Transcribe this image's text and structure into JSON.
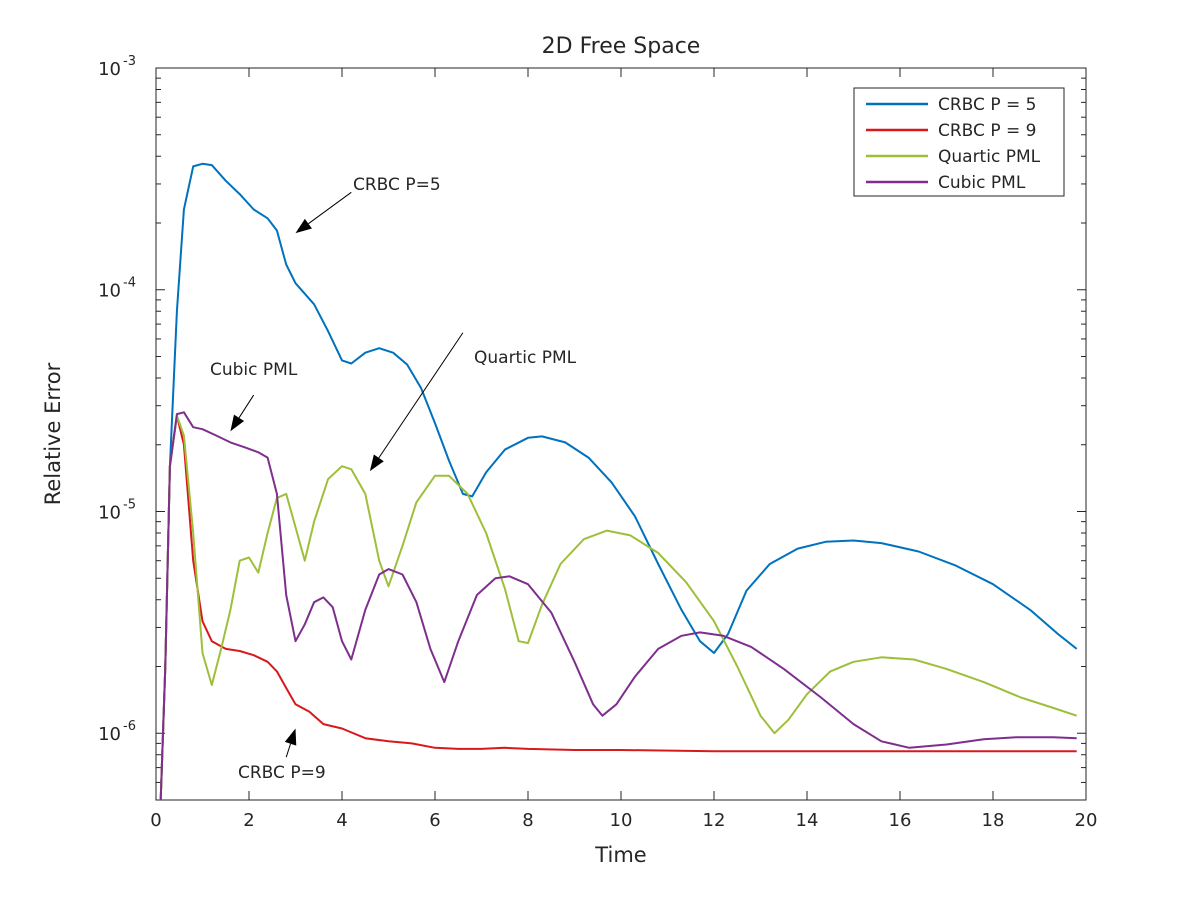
{
  "chart_data": {
    "type": "line",
    "title": "2D Free Space",
    "xlabel": "Time",
    "ylabel": "Relative Error",
    "xlim": [
      0,
      20
    ],
    "ylim": [
      5e-07,
      0.001
    ],
    "yscale": "log",
    "grid": false,
    "legend_position": "top-right",
    "x_ticks": [
      0,
      2,
      4,
      6,
      8,
      10,
      12,
      14,
      16,
      18,
      20
    ],
    "y_ticks": [
      {
        "value": 1e-06,
        "base": "10",
        "exp": "-6"
      },
      {
        "value": 1e-05,
        "base": "10",
        "exp": "-5"
      },
      {
        "value": 0.0001,
        "base": "10",
        "exp": "-4"
      },
      {
        "value": 0.001,
        "base": "10",
        "exp": "-3"
      }
    ],
    "series": [
      {
        "name": "CRBC P = 5",
        "color": "#0072BD",
        "points": [
          [
            0.1,
            5e-07
          ],
          [
            0.2,
            2e-06
          ],
          [
            0.3,
            1.6e-05
          ],
          [
            0.45,
            8e-05
          ],
          [
            0.6,
            0.00023
          ],
          [
            0.8,
            0.00036
          ],
          [
            1.0,
            0.00037
          ],
          [
            1.2,
            0.000365
          ],
          [
            1.5,
            0.00031
          ],
          [
            1.8,
            0.00027
          ],
          [
            2.1,
            0.00023
          ],
          [
            2.4,
            0.00021
          ],
          [
            2.6,
            0.000185
          ],
          [
            2.8,
            0.00013
          ],
          [
            3.0,
            0.000107
          ],
          [
            3.4,
            8.6e-05
          ],
          [
            3.7,
            6.5e-05
          ],
          [
            4.0,
            4.8e-05
          ],
          [
            4.2,
            4.65e-05
          ],
          [
            4.5,
            5.2e-05
          ],
          [
            4.8,
            5.45e-05
          ],
          [
            5.1,
            5.2e-05
          ],
          [
            5.4,
            4.6e-05
          ],
          [
            5.7,
            3.6e-05
          ],
          [
            6.0,
            2.5e-05
          ],
          [
            6.3,
            1.7e-05
          ],
          [
            6.6,
            1.2e-05
          ],
          [
            6.8,
            1.17e-05
          ],
          [
            7.1,
            1.5e-05
          ],
          [
            7.5,
            1.9e-05
          ],
          [
            8.0,
            2.15e-05
          ],
          [
            8.3,
            2.18e-05
          ],
          [
            8.8,
            2.05e-05
          ],
          [
            9.3,
            1.75e-05
          ],
          [
            9.8,
            1.35e-05
          ],
          [
            10.3,
            9.5e-06
          ],
          [
            10.8,
            5.8e-06
          ],
          [
            11.3,
            3.6e-06
          ],
          [
            11.7,
            2.6e-06
          ],
          [
            12.0,
            2.3e-06
          ],
          [
            12.3,
            2.8e-06
          ],
          [
            12.7,
            4.4e-06
          ],
          [
            13.2,
            5.8e-06
          ],
          [
            13.8,
            6.8e-06
          ],
          [
            14.4,
            7.3e-06
          ],
          [
            15.0,
            7.4e-06
          ],
          [
            15.6,
            7.2e-06
          ],
          [
            16.4,
            6.6e-06
          ],
          [
            17.2,
            5.7e-06
          ],
          [
            18.0,
            4.7e-06
          ],
          [
            18.8,
            3.6e-06
          ],
          [
            19.4,
            2.8e-06
          ],
          [
            19.8,
            2.4e-06
          ]
        ]
      },
      {
        "name": "CRBC P = 9",
        "color": "#D7191C",
        "points": [
          [
            0.1,
            5e-07
          ],
          [
            0.2,
            2e-06
          ],
          [
            0.3,
            1.6e-05
          ],
          [
            0.45,
            2.7e-05
          ],
          [
            0.6,
            2e-05
          ],
          [
            0.8,
            6e-06
          ],
          [
            1.0,
            3.2e-06
          ],
          [
            1.2,
            2.6e-06
          ],
          [
            1.5,
            2.4e-06
          ],
          [
            1.8,
            2.35e-06
          ],
          [
            2.1,
            2.25e-06
          ],
          [
            2.4,
            2.1e-06
          ],
          [
            2.6,
            1.9e-06
          ],
          [
            2.8,
            1.6e-06
          ],
          [
            3.0,
            1.35e-06
          ],
          [
            3.3,
            1.25e-06
          ],
          [
            3.6,
            1.1e-06
          ],
          [
            4.0,
            1.05e-06
          ],
          [
            4.5,
            9.5e-07
          ],
          [
            5.0,
            9.2e-07
          ],
          [
            5.5,
            9e-07
          ],
          [
            6.0,
            8.6e-07
          ],
          [
            6.5,
            8.5e-07
          ],
          [
            7.0,
            8.5e-07
          ],
          [
            7.5,
            8.6e-07
          ],
          [
            8.0,
            8.5e-07
          ],
          [
            9.0,
            8.4e-07
          ],
          [
            10.0,
            8.4e-07
          ],
          [
            12.0,
            8.3e-07
          ],
          [
            14.0,
            8.3e-07
          ],
          [
            16.0,
            8.3e-07
          ],
          [
            18.0,
            8.3e-07
          ],
          [
            19.8,
            8.3e-07
          ]
        ]
      },
      {
        "name": "Quartic PML",
        "color": "#9DBF3A",
        "points": [
          [
            0.1,
            5e-07
          ],
          [
            0.2,
            2e-06
          ],
          [
            0.3,
            1.6e-05
          ],
          [
            0.45,
            2.7e-05
          ],
          [
            0.6,
            2.2e-05
          ],
          [
            0.8,
            8e-06
          ],
          [
            1.0,
            2.3e-06
          ],
          [
            1.2,
            1.65e-06
          ],
          [
            1.4,
            2.4e-06
          ],
          [
            1.6,
            3.6e-06
          ],
          [
            1.8,
            6e-06
          ],
          [
            2.0,
            6.2e-06
          ],
          [
            2.2,
            5.3e-06
          ],
          [
            2.4,
            8e-06
          ],
          [
            2.6,
            1.15e-05
          ],
          [
            2.8,
            1.2e-05
          ],
          [
            3.0,
            8.5e-06
          ],
          [
            3.2,
            6e-06
          ],
          [
            3.4,
            9e-06
          ],
          [
            3.7,
            1.4e-05
          ],
          [
            4.0,
            1.6e-05
          ],
          [
            4.2,
            1.55e-05
          ],
          [
            4.5,
            1.2e-05
          ],
          [
            4.8,
            6e-06
          ],
          [
            5.0,
            4.6e-06
          ],
          [
            5.3,
            7e-06
          ],
          [
            5.6,
            1.1e-05
          ],
          [
            6.0,
            1.45e-05
          ],
          [
            6.3,
            1.45e-05
          ],
          [
            6.7,
            1.2e-05
          ],
          [
            7.1,
            8e-06
          ],
          [
            7.5,
            4.5e-06
          ],
          [
            7.8,
            2.6e-06
          ],
          [
            8.0,
            2.55e-06
          ],
          [
            8.3,
            3.8e-06
          ],
          [
            8.7,
            5.8e-06
          ],
          [
            9.2,
            7.5e-06
          ],
          [
            9.7,
            8.2e-06
          ],
          [
            10.2,
            7.8e-06
          ],
          [
            10.8,
            6.5e-06
          ],
          [
            11.4,
            4.8e-06
          ],
          [
            12.0,
            3.2e-06
          ],
          [
            12.5,
            2e-06
          ],
          [
            13.0,
            1.2e-06
          ],
          [
            13.3,
            1e-06
          ],
          [
            13.6,
            1.15e-06
          ],
          [
            14.0,
            1.5e-06
          ],
          [
            14.5,
            1.9e-06
          ],
          [
            15.0,
            2.1e-06
          ],
          [
            15.6,
            2.2e-06
          ],
          [
            16.3,
            2.15e-06
          ],
          [
            17.0,
            1.95e-06
          ],
          [
            17.8,
            1.7e-06
          ],
          [
            18.6,
            1.45e-06
          ],
          [
            19.3,
            1.3e-06
          ],
          [
            19.8,
            1.2e-06
          ]
        ]
      },
      {
        "name": "Cubic PML",
        "color": "#7E2F8E",
        "points": [
          [
            0.1,
            5e-07
          ],
          [
            0.2,
            2e-06
          ],
          [
            0.3,
            1.6e-05
          ],
          [
            0.45,
            2.75e-05
          ],
          [
            0.6,
            2.8e-05
          ],
          [
            0.8,
            2.4e-05
          ],
          [
            1.0,
            2.35e-05
          ],
          [
            1.3,
            2.2e-05
          ],
          [
            1.6,
            2.05e-05
          ],
          [
            1.9,
            1.95e-05
          ],
          [
            2.2,
            1.85e-05
          ],
          [
            2.4,
            1.75e-05
          ],
          [
            2.6,
            1.2e-05
          ],
          [
            2.8,
            4.2e-06
          ],
          [
            3.0,
            2.6e-06
          ],
          [
            3.2,
            3.1e-06
          ],
          [
            3.4,
            3.9e-06
          ],
          [
            3.6,
            4.1e-06
          ],
          [
            3.8,
            3.7e-06
          ],
          [
            4.0,
            2.6e-06
          ],
          [
            4.2,
            2.15e-06
          ],
          [
            4.5,
            3.6e-06
          ],
          [
            4.8,
            5.2e-06
          ],
          [
            5.0,
            5.5e-06
          ],
          [
            5.3,
            5.2e-06
          ],
          [
            5.6,
            3.9e-06
          ],
          [
            5.9,
            2.4e-06
          ],
          [
            6.2,
            1.7e-06
          ],
          [
            6.5,
            2.6e-06
          ],
          [
            6.9,
            4.2e-06
          ],
          [
            7.3,
            5e-06
          ],
          [
            7.6,
            5.1e-06
          ],
          [
            8.0,
            4.7e-06
          ],
          [
            8.5,
            3.5e-06
          ],
          [
            9.0,
            2.1e-06
          ],
          [
            9.4,
            1.35e-06
          ],
          [
            9.6,
            1.2e-06
          ],
          [
            9.9,
            1.35e-06
          ],
          [
            10.3,
            1.8e-06
          ],
          [
            10.8,
            2.4e-06
          ],
          [
            11.3,
            2.75e-06
          ],
          [
            11.7,
            2.85e-06
          ],
          [
            12.2,
            2.75e-06
          ],
          [
            12.8,
            2.45e-06
          ],
          [
            13.5,
            1.95e-06
          ],
          [
            14.3,
            1.45e-06
          ],
          [
            15.0,
            1.1e-06
          ],
          [
            15.6,
            9.2e-07
          ],
          [
            16.2,
            8.6e-07
          ],
          [
            17.0,
            8.9e-07
          ],
          [
            17.8,
            9.4e-07
          ],
          [
            18.5,
            9.6e-07
          ],
          [
            19.3,
            9.6e-07
          ],
          [
            19.8,
            9.5e-07
          ]
        ]
      }
    ],
    "annotations": [
      {
        "text": "CRBC P=5",
        "tip": [
          3.0,
          0.00018
        ],
        "tail": [
          4.2,
          0.000275
        ]
      },
      {
        "text": "Cubic PML",
        "tip": [
          1.6,
          2.3e-05
        ],
        "tail": [
          2.1,
          3.35e-05
        ]
      },
      {
        "text": "Quartic PML",
        "tip": [
          4.6,
          1.52e-05
        ],
        "tail": [
          6.6,
          6.4e-05
        ]
      },
      {
        "text": "CRBC P=9",
        "tip": [
          3.0,
          1.05e-06
        ],
        "tail": [
          2.8,
          7.8e-07
        ]
      }
    ]
  }
}
